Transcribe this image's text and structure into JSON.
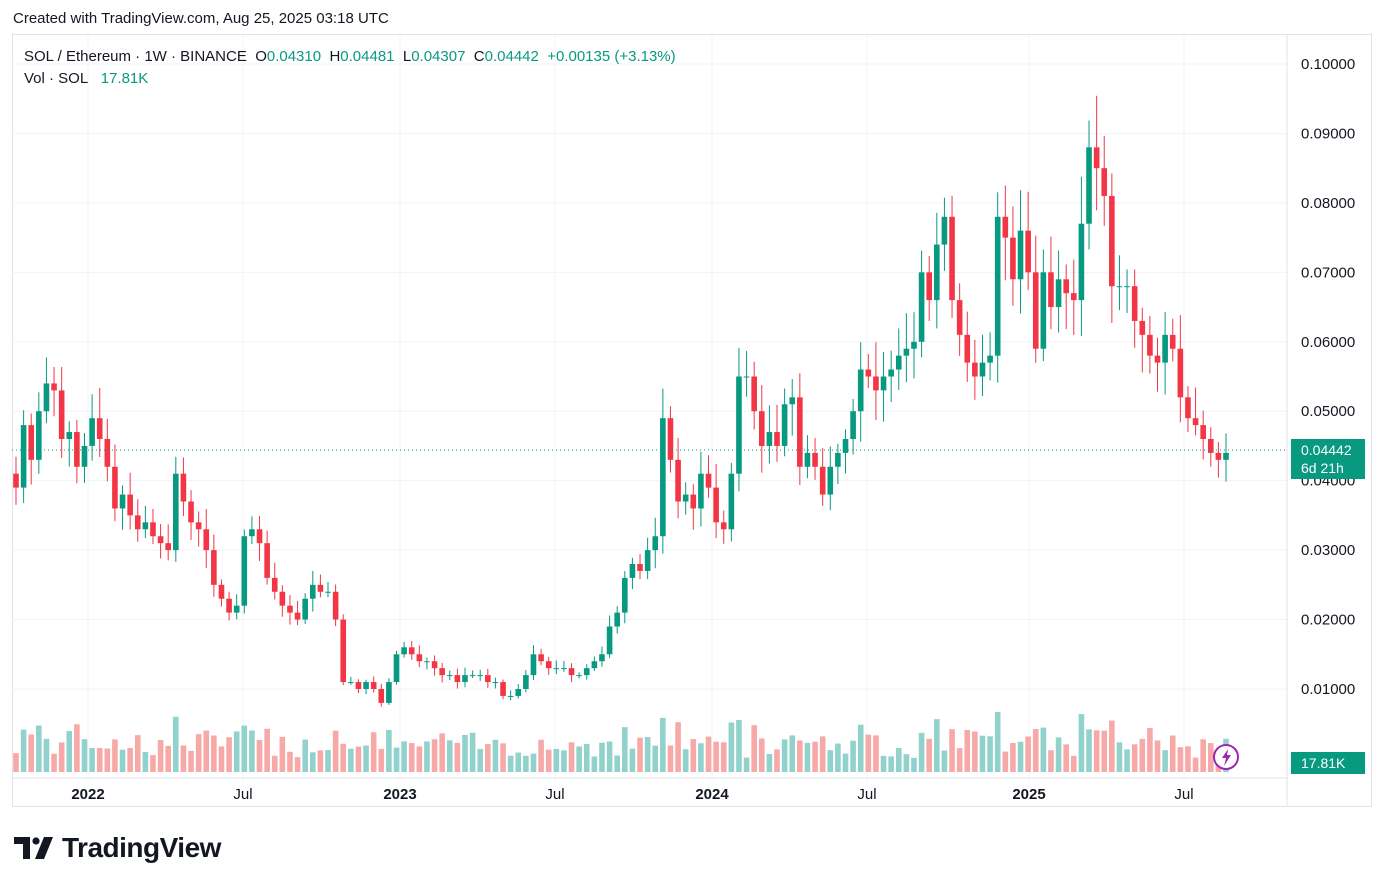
{
  "header": {
    "created_text": "Created with TradingView.com, Aug 25, 2025 03:18 UTC"
  },
  "legend": {
    "symbol": "SOL / Ethereum · 1W · BINANCE",
    "open_label": "O",
    "open": "0.04310",
    "high_label": "H",
    "high": "0.04481",
    "low_label": "L",
    "low": "0.04307",
    "close_label": "C",
    "close": "0.04442",
    "change": "+0.00135 (+3.13%)",
    "vol_label": "Vol · SOL",
    "vol_value": "17.81K"
  },
  "price_tag": {
    "price": "0.04442",
    "countdown": "6d 21h"
  },
  "volume_tag": "17.81K",
  "brand": "TradingView",
  "colors": {
    "up": "#089981",
    "down": "#f23645",
    "up_vol": "#92d2cc",
    "down_vol": "#f7a9a7",
    "grid": "#f0f3fa"
  },
  "chart_data": {
    "type": "candlestick",
    "symbol": "SOL / Ethereum",
    "interval": "1W",
    "exchange": "BINANCE",
    "y_ticks": [
      "0.10000",
      "0.09000",
      "0.08000",
      "0.07000",
      "0.06000",
      "0.05000",
      "0.04000",
      "0.03000",
      "0.02000",
      "0.01000"
    ],
    "x_ticks": [
      "2022",
      "Jul",
      "2023",
      "Jul",
      "2024",
      "Jul",
      "2025",
      "Jul"
    ],
    "ylim": [
      0.0,
      0.105
    ],
    "grid": true,
    "close_series": [
      0.039,
      0.048,
      0.043,
      0.05,
      0.054,
      0.053,
      0.046,
      0.047,
      0.042,
      0.045,
      0.049,
      0.046,
      0.042,
      0.036,
      0.038,
      0.035,
      0.033,
      0.034,
      0.032,
      0.031,
      0.03,
      0.041,
      0.037,
      0.034,
      0.033,
      0.03,
      0.025,
      0.023,
      0.021,
      0.022,
      0.032,
      0.033,
      0.031,
      0.026,
      0.024,
      0.022,
      0.021,
      0.02,
      0.023,
      0.025,
      0.024,
      0.024,
      0.02,
      0.011,
      0.011,
      0.01,
      0.011,
      0.01,
      0.008,
      0.011,
      0.015,
      0.016,
      0.015,
      0.014,
      0.014,
      0.013,
      0.012,
      0.012,
      0.011,
      0.012,
      0.012,
      0.012,
      0.011,
      0.011,
      0.009,
      0.009,
      0.01,
      0.012,
      0.015,
      0.014,
      0.013,
      0.013,
      0.013,
      0.012,
      0.012,
      0.013,
      0.014,
      0.015,
      0.019,
      0.021,
      0.026,
      0.028,
      0.027,
      0.03,
      0.032,
      0.049,
      0.043,
      0.037,
      0.038,
      0.036,
      0.041,
      0.039,
      0.034,
      0.033,
      0.041,
      0.055,
      0.055,
      0.05,
      0.045,
      0.047,
      0.045,
      0.051,
      0.052,
      0.042,
      0.044,
      0.042,
      0.038,
      0.042,
      0.044,
      0.046,
      0.05,
      0.056,
      0.055,
      0.053,
      0.055,
      0.056,
      0.058,
      0.059,
      0.06,
      0.07,
      0.066,
      0.074,
      0.078,
      0.066,
      0.061,
      0.057,
      0.055,
      0.057,
      0.058,
      0.078,
      0.075,
      0.069,
      0.076,
      0.07,
      0.059,
      0.07,
      0.065,
      0.069,
      0.067,
      0.066,
      0.077,
      0.088,
      0.085,
      0.081,
      0.068,
      0.068,
      0.068,
      0.063,
      0.061,
      0.058,
      0.057,
      0.061,
      0.059,
      0.052,
      0.049,
      0.048,
      0.046,
      0.044,
      0.043,
      0.044
    ],
    "close_note": "weekly closes, approximate, read from chart; last close 0.04442",
    "volume": {
      "last": "17.81K"
    }
  }
}
